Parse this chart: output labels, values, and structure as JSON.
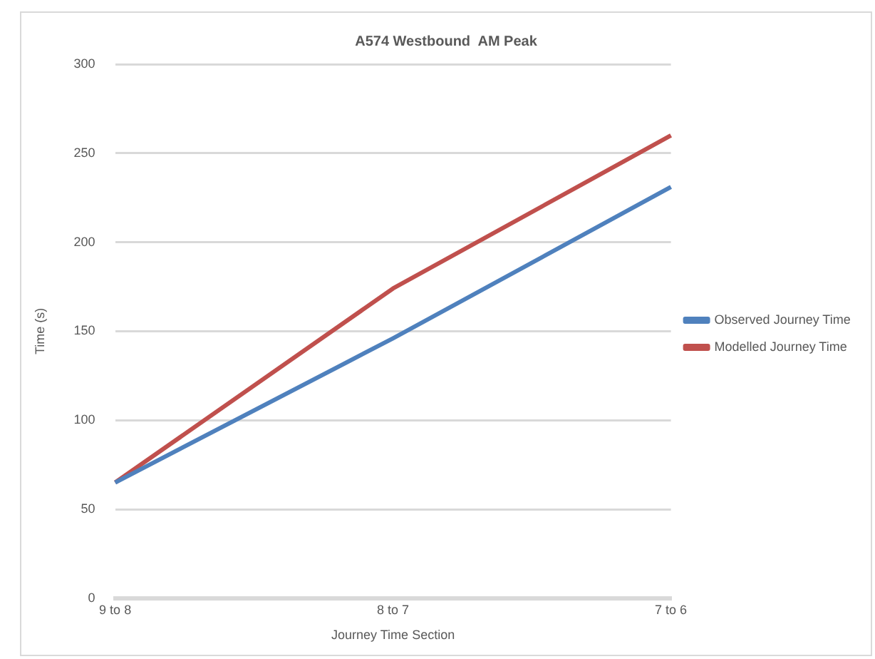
{
  "chart_data": {
    "type": "line",
    "title": "A574 Westbound  AM Peak",
    "xlabel": "Journey Time Section",
    "ylabel": "Time (s)",
    "categories": [
      "9 to 8",
      "8 to 7",
      "7 to 6"
    ],
    "series": [
      {
        "name": "Observed Journey Time",
        "color": "#4f81bd",
        "values": [
          65,
          146,
          231
        ]
      },
      {
        "name": "Modelled Journey Time",
        "color": "#c0504d",
        "values": [
          65,
          174,
          260
        ]
      }
    ],
    "ylim": [
      0,
      300
    ],
    "yticks": [
      0,
      50,
      100,
      150,
      200,
      250,
      300
    ],
    "grid": "y",
    "legend": "right",
    "marker": "none"
  }
}
